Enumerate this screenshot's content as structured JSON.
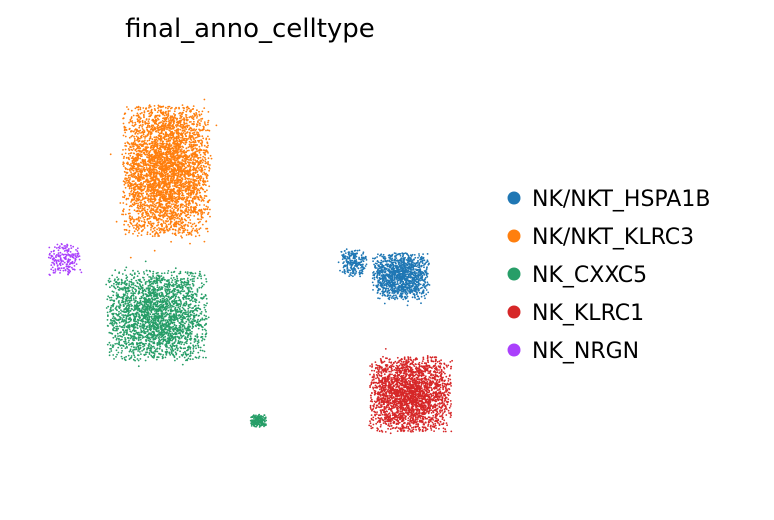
{
  "chart_data": {
    "type": "scatter",
    "title": "final_anno_celltype",
    "xlabel": "",
    "ylabel": "",
    "axes_visible": false,
    "grid": false,
    "legend_placement": "right",
    "series": [
      {
        "name": "NK/NKT_HSPA1B",
        "color": "#1f77b4",
        "points": 1500,
        "clusters": [
          {
            "x": 6.2,
            "y": 2.0,
            "sx": 0.95,
            "sy": 0.75,
            "share": 0.85
          },
          {
            "x": 4.7,
            "y": 2.4,
            "sx": 0.45,
            "sy": 0.45,
            "share": 0.15
          }
        ]
      },
      {
        "name": "NK/NKT_KLRC3",
        "color": "#ff7f0e",
        "points": 4000,
        "clusters": [
          {
            "x": -1.2,
            "y": 5.2,
            "sx": 1.45,
            "sy": 2.1,
            "share": 1.0
          }
        ]
      },
      {
        "name": "NK_CXXC5",
        "color": "#279e68",
        "points": 2800,
        "clusters": [
          {
            "x": -1.5,
            "y": 0.8,
            "sx": 1.65,
            "sy": 1.45,
            "share": 0.93
          },
          {
            "x": 1.7,
            "y": -2.4,
            "sx": 0.25,
            "sy": 0.2,
            "share": 0.07
          }
        ]
      },
      {
        "name": "NK_KLRC1",
        "color": "#d62728",
        "points": 2600,
        "clusters": [
          {
            "x": 6.5,
            "y": -1.6,
            "sx": 1.35,
            "sy": 1.2,
            "share": 1.0
          }
        ]
      },
      {
        "name": "NK_NRGN",
        "color": "#aa40fc",
        "points": 200,
        "clusters": [
          {
            "x": -4.4,
            "y": 2.5,
            "sx": 0.55,
            "sy": 0.5,
            "share": 1.0
          }
        ]
      }
    ],
    "xlim": [
      -5.5,
      9.0
    ],
    "ylim": [
      -4.5,
      8.5
    ]
  }
}
